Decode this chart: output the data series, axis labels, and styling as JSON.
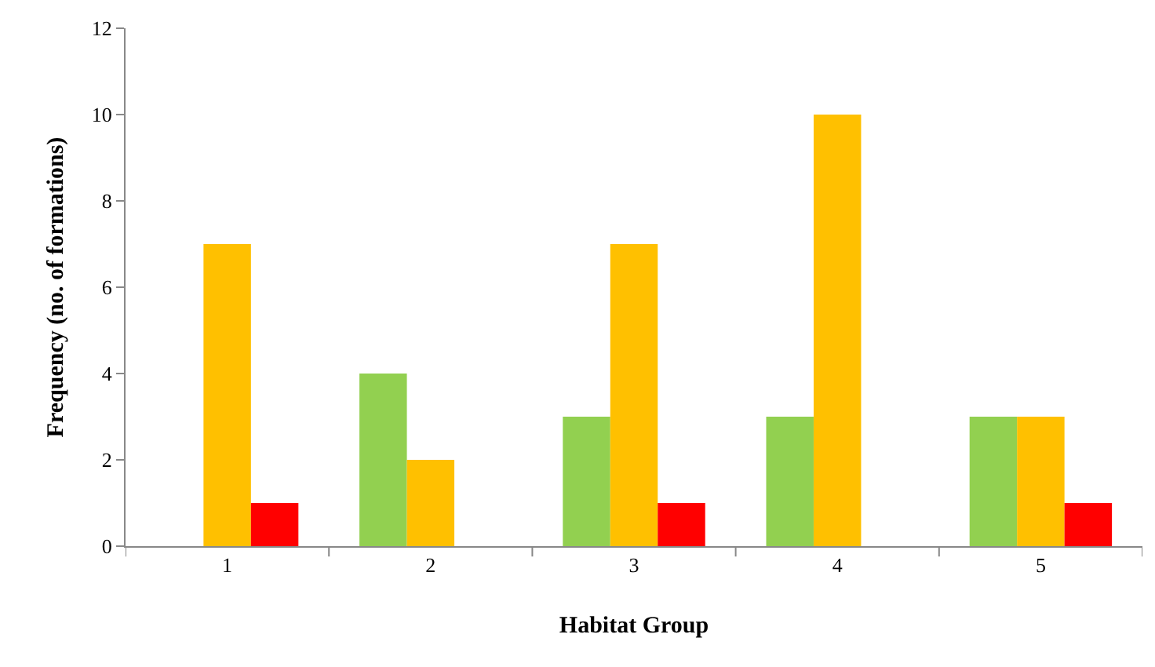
{
  "chart_data": {
    "type": "bar",
    "xlabel": "Habitat Group",
    "ylabel": "Frequency (no. of formations)",
    "categories": [
      "1",
      "2",
      "3",
      "4",
      "5"
    ],
    "series": [
      {
        "color": "#92d050",
        "values": [
          0,
          4,
          3,
          3,
          3
        ]
      },
      {
        "color": "#ffc000",
        "values": [
          7,
          2,
          7,
          10,
          3
        ]
      },
      {
        "color": "#ff0000",
        "values": [
          1,
          0,
          1,
          0,
          1
        ]
      }
    ],
    "ylim": [
      0,
      12
    ],
    "yticks": [
      0,
      2,
      4,
      6,
      8,
      10,
      12
    ],
    "grid": false
  }
}
